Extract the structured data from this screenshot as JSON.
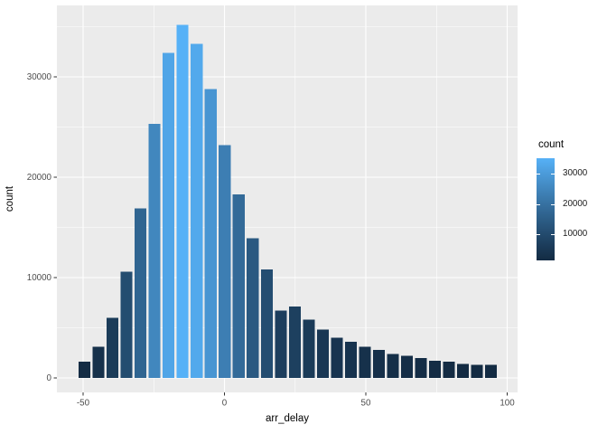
{
  "figure": {
    "background": "#FFFFFF"
  },
  "chart_data": {
    "type": "bar",
    "subtype": "histogram",
    "title": "",
    "xlabel": "arr_delay",
    "ylabel": "count",
    "binwidth": 5,
    "bin_centers": [
      -50,
      -45,
      -40,
      -35,
      -30,
      -25,
      -20,
      -15,
      -10,
      -5,
      0,
      5,
      10,
      15,
      20,
      25,
      30,
      35,
      40,
      45,
      50,
      55,
      60,
      65,
      70,
      75,
      80,
      85,
      90,
      95
    ],
    "values": [
      1600,
      3100,
      6000,
      10600,
      16900,
      25300,
      32400,
      35200,
      33300,
      28800,
      23200,
      18300,
      13900,
      10800,
      6700,
      7100,
      5800,
      4800,
      4000,
      3600,
      3100,
      2800,
      2400,
      2200,
      2000,
      1700,
      1600,
      1400,
      1300,
      1300
    ],
    "x_ticks": {
      "values": [
        -50,
        0,
        50,
        100
      ],
      "labels": [
        "-50",
        "0",
        "50",
        "100"
      ]
    },
    "y_ticks": {
      "values": [
        0,
        10000,
        20000,
        30000
      ],
      "labels": [
        "0",
        "10000",
        "20000",
        "30000"
      ]
    },
    "x_minor": [
      -25,
      25,
      75
    ],
    "y_minor": [
      5000,
      15000,
      25000,
      35000
    ],
    "xlim": [
      -59.3,
      103.7
    ],
    "ylim": [
      -1600,
      37100
    ],
    "grid": true,
    "legend": {
      "position": "right",
      "title": "count",
      "ticks": {
        "values": [
          30000,
          20000,
          10000
        ],
        "labels": [
          "30000",
          "20000",
          "10000"
        ]
      }
    },
    "colors": {
      "fill_low": "#132B43",
      "fill_high": "#56B1F7",
      "panel_bg": "#EBEBEB",
      "grid": "#FFFFFF",
      "axis_text": "#4D4D4D",
      "axis_title": "#000000",
      "tick_mark": "#333333"
    }
  }
}
